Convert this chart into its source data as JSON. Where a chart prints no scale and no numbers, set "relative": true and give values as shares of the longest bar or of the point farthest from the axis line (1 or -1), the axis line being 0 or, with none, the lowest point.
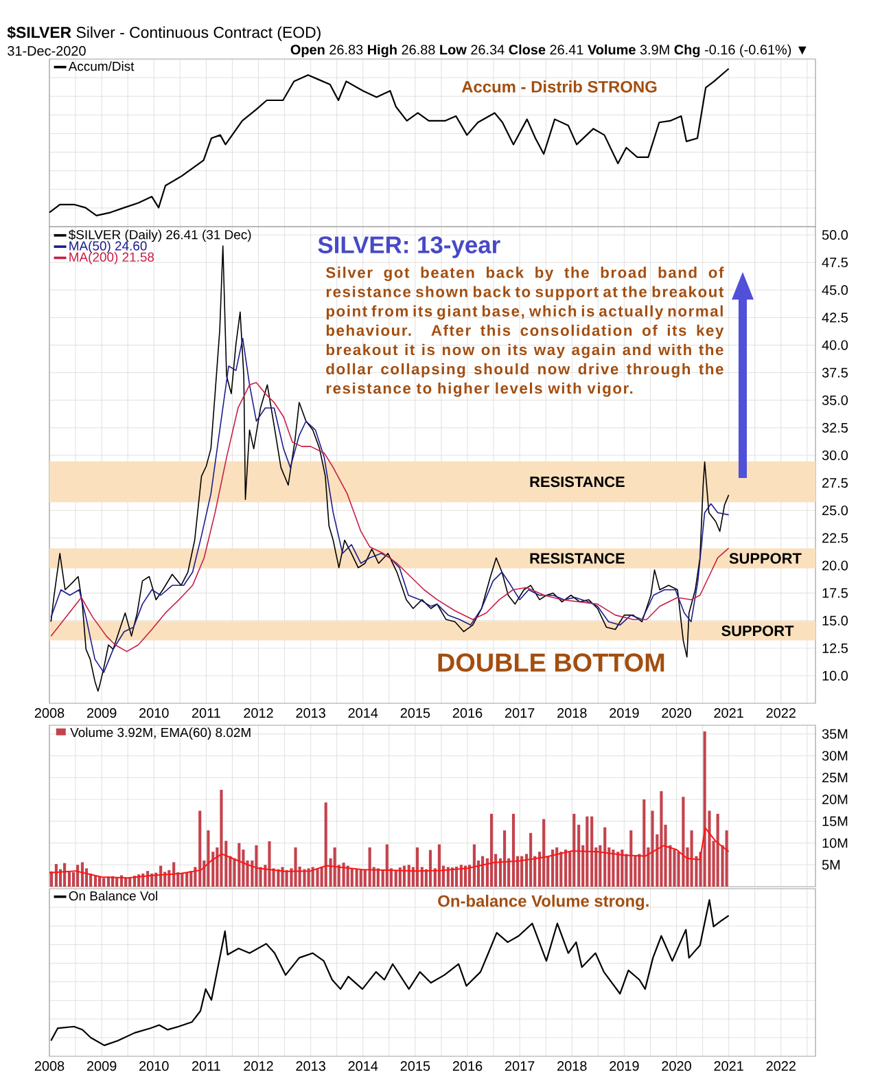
{
  "chart_data": [
    {
      "type": "line",
      "title": "**$SILVER** Silver - Continuous Contract (EOD)",
      "subtitle": "31-Dec-2020",
      "annotations": [
        "**Open** 26.83 **High** 26.88 **Low** 26.34 **Close** 26.41 **Volume** 3.9M **Chg** -0.16 (-0.61%) ▼",
        "Accum - Distrib STRONG"
      ],
      "relative": true,
      "xlim": [
        2008,
        2022.66
      ],
      "xticks": [
        2008,
        {
          "value": 2008.5,
          "label": null
        },
        2009,
        {
          "value": 2009.5,
          "label": null
        },
        2010,
        {
          "value": 2010.5,
          "label": null
        },
        2011,
        {
          "value": 2011.5,
          "label": null
        },
        2012,
        {
          "value": 2012.5,
          "label": null
        },
        2013,
        {
          "value": 2013.5,
          "label": null
        },
        2014,
        {
          "value": 2014.5,
          "label": null
        },
        2015,
        {
          "value": 2015.5,
          "label": null
        },
        2016,
        {
          "value": 2016.5,
          "label": null
        },
        2017,
        {
          "value": 2017.5,
          "label": null
        },
        2018,
        {
          "value": 2018.5,
          "label": null
        },
        2019,
        {
          "value": 2019.5,
          "label": null
        },
        2020,
        {
          "value": 2020.5,
          "label": null
        },
        2021,
        {
          "value": 2021.5,
          "label": null
        },
        2022,
        {
          "value": 2022.5,
          "label": null
        }
      ],
      "tick_labels": false,
      "grid": true,
      "legend": "top left",
      "series": [
        {
          "name": "Accum/Dist",
          "color": "#000000",
          "x": [
            2008.0,
            2008.2,
            2008.47,
            2008.69,
            2008.9,
            2009.17,
            2009.43,
            2009.7,
            2009.96,
            2010.09,
            2010.22,
            2010.53,
            2010.95,
            2011.1,
            2011.27,
            2011.37,
            2011.69,
            2011.95,
            2012.16,
            2012.47,
            2012.68,
            2012.95,
            2013.16,
            2013.37,
            2013.53,
            2013.68,
            2014.0,
            2014.26,
            2014.52,
            2014.63,
            2014.84,
            2015.05,
            2015.26,
            2015.57,
            2015.78,
            2015.99,
            2016.2,
            2016.52,
            2016.67,
            2016.88,
            2017.14,
            2017.3,
            2017.46,
            2017.67,
            2017.93,
            2018.09,
            2018.41,
            2018.62,
            2018.88,
            2019.04,
            2019.25,
            2019.46,
            2019.67,
            2019.88,
            2020.09,
            2020.19,
            2020.4,
            2020.56,
            2020.72,
            2021.0
          ],
          "values": [
            0.09,
            0.14,
            0.14,
            0.12,
            0.07,
            0.09,
            0.12,
            0.15,
            0.19,
            0.12,
            0.26,
            0.32,
            0.42,
            0.56,
            0.58,
            0.52,
            0.67,
            0.74,
            0.8,
            0.8,
            0.92,
            0.96,
            0.93,
            0.9,
            0.8,
            0.92,
            0.86,
            0.82,
            0.86,
            0.76,
            0.67,
            0.72,
            0.67,
            0.67,
            0.7,
            0.58,
            0.66,
            0.72,
            0.66,
            0.52,
            0.68,
            0.56,
            0.46,
            0.68,
            0.64,
            0.52,
            0.62,
            0.58,
            0.4,
            0.5,
            0.44,
            0.44,
            0.66,
            0.67,
            0.7,
            0.54,
            0.56,
            0.88,
            0.92,
            1.0
          ]
        }
      ]
    },
    {
      "type": "line",
      "title": "SILVER: 13-year",
      "annotations": [
        "Silver got beaten back by the broad band of resistance shown back to support at the breakout point from its giant base, which is actually normal behaviour. After this consolidation of its key breakout it is now on its way again and with the dollar collapsing should now drive through the resistance to higher levels with vigor.",
        "SUPPORT",
        "DOUBLE BOTTOM"
      ],
      "xlim": [
        2008,
        2022.66
      ],
      "xticks": [
        2008,
        {
          "value": 2008.5,
          "label": null
        },
        2009,
        {
          "value": 2009.5,
          "label": null
        },
        2010,
        {
          "value": 2010.5,
          "label": null
        },
        2011,
        {
          "value": 2011.5,
          "label": null
        },
        2012,
        {
          "value": 2012.5,
          "label": null
        },
        2013,
        {
          "value": 2013.5,
          "label": null
        },
        2014,
        {
          "value": 2014.5,
          "label": null
        },
        2015,
        {
          "value": 2015.5,
          "label": null
        },
        2016,
        {
          "value": 2016.5,
          "label": null
        },
        2017,
        {
          "value": 2017.5,
          "label": null
        },
        2018,
        {
          "value": 2018.5,
          "label": null
        },
        2019,
        {
          "value": 2019.5,
          "label": null
        },
        2020,
        {
          "value": 2020.5,
          "label": null
        },
        2021,
        {
          "value": 2021.5,
          "label": null
        },
        2022,
        {
          "value": 2022.5,
          "label": null
        }
      ],
      "ylim": [
        7.5,
        50.75
      ],
      "yticks": [
        {
          "value": 10,
          "label": "10.0"
        },
        {
          "value": 12.5,
          "label": "12.5"
        },
        {
          "value": 15,
          "label": "15.0"
        },
        {
          "value": 17.5,
          "label": "17.5"
        },
        {
          "value": 20,
          "label": "20.0"
        },
        {
          "value": 22.5,
          "label": "22.5"
        },
        {
          "value": 25,
          "label": "25.0"
        },
        {
          "value": 27.5,
          "label": "27.5"
        },
        {
          "value": 30,
          "label": "30.0"
        },
        {
          "value": 32.5,
          "label": "32.5"
        },
        {
          "value": 35,
          "label": "35.0"
        },
        {
          "value": 37.5,
          "label": "37.5"
        },
        {
          "value": 40,
          "label": "40.0"
        },
        {
          "value": 42.5,
          "label": "42.5"
        },
        {
          "value": 45,
          "label": "45.0"
        },
        {
          "value": 47.5,
          "label": "47.5"
        },
        {
          "value": 50,
          "label": "50.0"
        }
      ],
      "grid": true,
      "legend": "top left",
      "bands": [
        {
          "axis": "y",
          "from": 25.75,
          "to": 29.45,
          "color": "#fae0bd",
          "label": "RESISTANCE"
        },
        {
          "axis": "y",
          "from": 19.75,
          "to": 21.55,
          "color": "#fae0bd",
          "label": "RESISTANCE"
        },
        {
          "axis": "y",
          "from": 13.2,
          "to": 14.95,
          "color": "#fae0bd",
          "label": "SUPPORT"
        }
      ],
      "series": [
        {
          "name": "$SILVER (Daily) 26.41 (31 Dec)",
          "color": "#000000",
          "x": [
            2008.03,
            2008.09,
            2008.2,
            2008.3,
            2008.43,
            2008.55,
            2008.63,
            2008.7,
            2008.78,
            2008.87,
            2008.93,
            2008.96,
            2009.04,
            2009.13,
            2009.22,
            2009.33,
            2009.45,
            2009.57,
            2009.68,
            2009.78,
            2009.91,
            2010.04,
            2010.17,
            2010.35,
            2010.52,
            2010.65,
            2010.78,
            2010.91,
            2011.0,
            2011.09,
            2011.17,
            2011.26,
            2011.32,
            2011.39,
            2011.48,
            2011.57,
            2011.65,
            2011.72,
            2011.75,
            2011.83,
            2011.91,
            2012.04,
            2012.17,
            2012.3,
            2012.43,
            2012.57,
            2012.7,
            2012.78,
            2012.91,
            2013.04,
            2013.17,
            2013.28,
            2013.35,
            2013.43,
            2013.54,
            2013.65,
            2013.78,
            2013.91,
            2014.04,
            2014.17,
            2014.3,
            2014.48,
            2014.65,
            2014.83,
            2014.96,
            2015.13,
            2015.3,
            2015.42,
            2015.59,
            2015.76,
            2015.93,
            2016.1,
            2016.27,
            2016.44,
            2016.55,
            2016.66,
            2016.78,
            2016.91,
            2017.08,
            2017.21,
            2017.38,
            2017.51,
            2017.64,
            2017.81,
            2017.98,
            2018.15,
            2018.32,
            2018.49,
            2018.66,
            2018.83,
            2019.0,
            2019.17,
            2019.34,
            2019.51,
            2019.58,
            2019.68,
            2019.85,
            2020.02,
            2020.13,
            2020.2,
            2020.24,
            2020.36,
            2020.45,
            2020.51,
            2020.54,
            2020.62,
            2020.75,
            2020.83,
            2020.92,
            2021.0
          ],
          "values": [
            14.9,
            17.3,
            21.1,
            17.8,
            18.4,
            19.0,
            16.5,
            12.4,
            11.5,
            9.5,
            8.6,
            9.1,
            10.7,
            12.8,
            12.4,
            14.0,
            15.7,
            13.6,
            15.7,
            18.6,
            19.0,
            16.9,
            17.8,
            19.2,
            18.2,
            19.4,
            22.3,
            28.1,
            29.0,
            30.6,
            35.6,
            41.4,
            49.0,
            37.2,
            35.6,
            40.1,
            43.0,
            37.2,
            26.0,
            32.3,
            30.6,
            34.3,
            36.4,
            32.7,
            28.9,
            27.3,
            31.4,
            34.8,
            33.1,
            32.3,
            30.6,
            28.1,
            23.6,
            22.3,
            19.8,
            22.3,
            21.1,
            19.8,
            20.2,
            21.5,
            20.2,
            21.1,
            19.4,
            16.9,
            16.1,
            16.9,
            16.1,
            16.5,
            15.1,
            14.9,
            14.0,
            14.6,
            16.1,
            19.0,
            20.7,
            19.4,
            17.3,
            16.5,
            17.8,
            18.2,
            16.9,
            17.3,
            17.5,
            16.7,
            17.3,
            16.7,
            16.9,
            16.1,
            14.4,
            14.2,
            15.5,
            15.5,
            14.9,
            17.3,
            19.6,
            17.8,
            18.2,
            17.8,
            13.2,
            11.7,
            15.7,
            17.8,
            20.7,
            27.3,
            29.4,
            24.8,
            24.0,
            23.1,
            25.5,
            26.41
          ]
        },
        {
          "name": "MA(50) 24.60",
          "color": "#1c1c8c",
          "x": [
            2008.03,
            2008.22,
            2008.39,
            2008.57,
            2008.7,
            2008.87,
            2009.04,
            2009.22,
            2009.43,
            2009.61,
            2009.78,
            2009.96,
            2010.13,
            2010.35,
            2010.57,
            2010.74,
            2010.91,
            2011.09,
            2011.26,
            2011.43,
            2011.57,
            2011.7,
            2011.83,
            2011.96,
            2012.13,
            2012.3,
            2012.48,
            2012.61,
            2012.78,
            2012.91,
            2013.09,
            2013.26,
            2013.43,
            2013.61,
            2013.78,
            2013.96,
            2014.13,
            2014.35,
            2014.52,
            2014.7,
            2014.87,
            2015.09,
            2015.3,
            2015.42,
            2015.63,
            2015.85,
            2016.06,
            2016.27,
            2016.49,
            2016.66,
            2016.83,
            2017.0,
            2017.17,
            2017.38,
            2017.64,
            2017.85,
            2018.06,
            2018.32,
            2018.49,
            2018.7,
            2018.92,
            2019.13,
            2019.34,
            2019.56,
            2019.77,
            2019.98,
            2020.15,
            2020.28,
            2020.41,
            2020.54,
            2020.66,
            2020.79,
            2021.0
          ],
          "values": [
            15.3,
            17.8,
            17.3,
            17.8,
            15.3,
            11.5,
            10.3,
            12.4,
            14.0,
            14.4,
            16.5,
            17.8,
            17.3,
            18.2,
            18.2,
            19.4,
            22.7,
            26.5,
            32.3,
            38.1,
            37.7,
            40.6,
            36.4,
            33.1,
            34.3,
            34.3,
            30.6,
            28.9,
            31.8,
            33.1,
            32.3,
            29.8,
            24.8,
            21.1,
            21.9,
            20.2,
            20.7,
            21.1,
            20.7,
            19.8,
            17.3,
            16.9,
            16.3,
            16.5,
            15.5,
            15.1,
            14.6,
            16.1,
            18.6,
            19.4,
            18.2,
            16.9,
            17.8,
            17.3,
            17.3,
            16.9,
            17.1,
            16.7,
            16.3,
            14.9,
            14.6,
            15.5,
            15.1,
            17.3,
            17.8,
            17.8,
            15.7,
            14.9,
            18.6,
            24.8,
            25.6,
            24.8,
            24.6
          ]
        },
        {
          "name": "MA(200) 21.58",
          "color": "#c81e46",
          "x": [
            2008.03,
            2008.61,
            2008.83,
            2009.09,
            2009.26,
            2009.48,
            2009.7,
            2009.96,
            2010.22,
            2010.48,
            2010.74,
            2010.96,
            2011.17,
            2011.39,
            2011.61,
            2011.83,
            2011.96,
            2012.13,
            2012.3,
            2012.48,
            2012.65,
            2012.83,
            2013.0,
            2013.26,
            2013.43,
            2013.7,
            2013.96,
            2014.13,
            2014.39,
            2014.65,
            2014.91,
            2015.17,
            2015.42,
            2015.76,
            2016.1,
            2016.36,
            2016.61,
            2016.87,
            2017.13,
            2017.47,
            2017.81,
            2018.15,
            2018.49,
            2018.83,
            2019.17,
            2019.43,
            2019.68,
            2020.02,
            2020.28,
            2020.45,
            2020.62,
            2020.79,
            2021.0
          ],
          "values": [
            13.6,
            17.1,
            15.3,
            13.6,
            12.8,
            12.2,
            12.8,
            14.2,
            15.7,
            16.9,
            18.2,
            20.7,
            24.8,
            29.8,
            34.3,
            36.4,
            36.6,
            35.6,
            34.8,
            33.5,
            31.2,
            30.8,
            30.8,
            30.2,
            28.9,
            26.5,
            23.1,
            21.7,
            21.1,
            20.2,
            19.0,
            17.8,
            16.9,
            15.9,
            15.1,
            15.7,
            16.9,
            17.8,
            18.0,
            17.3,
            16.9,
            16.7,
            16.5,
            15.5,
            15.1,
            15.1,
            16.3,
            17.1,
            16.9,
            17.3,
            19.0,
            20.7,
            21.58
          ]
        }
      ]
    },
    {
      "type": "bar",
      "xlim": [
        2008,
        2022.66
      ],
      "xticks": [
        2008,
        {
          "value": 2008.5,
          "label": null
        },
        2009,
        {
          "value": 2009.5,
          "label": null
        },
        2010,
        {
          "value": 2010.5,
          "label": null
        },
        2011,
        {
          "value": 2011.5,
          "label": null
        },
        2012,
        {
          "value": 2012.5,
          "label": null
        },
        2013,
        {
          "value": 2013.5,
          "label": null
        },
        2014,
        {
          "value": 2014.5,
          "label": null
        },
        2015,
        {
          "value": 2015.5,
          "label": null
        },
        2016,
        {
          "value": 2016.5,
          "label": null
        },
        2017,
        {
          "value": 2017.5,
          "label": null
        },
        2018,
        {
          "value": 2018.5,
          "label": null
        },
        2019,
        {
          "value": 2019.5,
          "label": null
        },
        2020,
        {
          "value": 2020.5,
          "label": null
        },
        2021,
        {
          "value": 2021.5,
          "label": null
        },
        2022,
        {
          "value": 2022.5,
          "label": null
        }
      ],
      "ylim": [
        0,
        37
      ],
      "yticks": [
        {
          "value": 5,
          "label": "5M"
        },
        {
          "value": 10,
          "label": "10M"
        },
        {
          "value": 15,
          "label": "15M"
        },
        {
          "value": 20,
          "label": "20M"
        },
        {
          "value": 25,
          "label": "25M"
        },
        {
          "value": 30,
          "label": "30M"
        },
        {
          "value": 35,
          "label": "35M"
        }
      ],
      "tick_labels": "y",
      "grid": true,
      "legend": "top left",
      "series": [
        {
          "name": "Volume 3.92M, EMA(60) 8.02M",
          "color": "#c4424c",
          "x": [
            2008.04,
            2008.13,
            2008.21,
            2008.29,
            2008.38,
            2008.46,
            2008.54,
            2008.63,
            2008.71,
            2008.79,
            2008.88,
            2008.96,
            2009.04,
            2009.13,
            2009.21,
            2009.29,
            2009.38,
            2009.46,
            2009.54,
            2009.63,
            2009.71,
            2009.79,
            2009.88,
            2009.96,
            2010.04,
            2010.13,
            2010.21,
            2010.29,
            2010.38,
            2010.46,
            2010.54,
            2010.63,
            2010.71,
            2010.79,
            2010.88,
            2010.96,
            2011.04,
            2011.13,
            2011.21,
            2011.29,
            2011.38,
            2011.46,
            2011.54,
            2011.63,
            2011.71,
            2011.79,
            2011.88,
            2011.96,
            2012.04,
            2012.13,
            2012.21,
            2012.29,
            2012.38,
            2012.46,
            2012.54,
            2012.63,
            2012.71,
            2012.79,
            2012.88,
            2012.96,
            2013.04,
            2013.13,
            2013.21,
            2013.29,
            2013.38,
            2013.46,
            2013.54,
            2013.63,
            2013.71,
            2013.79,
            2013.88,
            2013.96,
            2014.04,
            2014.13,
            2014.21,
            2014.29,
            2014.38,
            2014.46,
            2014.54,
            2014.63,
            2014.71,
            2014.79,
            2014.88,
            2014.96,
            2015.04,
            2015.13,
            2015.21,
            2015.29,
            2015.38,
            2015.46,
            2015.54,
            2015.63,
            2015.71,
            2015.79,
            2015.88,
            2015.96,
            2016.04,
            2016.13,
            2016.21,
            2016.29,
            2016.38,
            2016.46,
            2016.54,
            2016.63,
            2016.71,
            2016.79,
            2016.88,
            2016.96,
            2017.04,
            2017.13,
            2017.21,
            2017.29,
            2017.38,
            2017.46,
            2017.54,
            2017.63,
            2017.71,
            2017.79,
            2017.88,
            2017.96,
            2018.04,
            2018.13,
            2018.21,
            2018.29,
            2018.38,
            2018.46,
            2018.54,
            2018.63,
            2018.71,
            2018.79,
            2018.88,
            2018.96,
            2019.04,
            2019.13,
            2019.21,
            2019.29,
            2019.38,
            2019.46,
            2019.54,
            2019.63,
            2019.71,
            2019.79,
            2019.88,
            2019.96,
            2020.04,
            2020.13,
            2020.21,
            2020.29,
            2020.38,
            2020.46,
            2020.54,
            2020.63,
            2020.71,
            2020.79,
            2020.88,
            2020.96
          ],
          "values": [
            3.5,
            5.2,
            4.0,
            5.4,
            3.4,
            3.3,
            5.0,
            5.6,
            4.2,
            3.0,
            2.5,
            2.2,
            2.0,
            2.3,
            2.4,
            2.2,
            2.6,
            2.0,
            2.2,
            2.5,
            2.8,
            3.0,
            3.6,
            3.0,
            3.2,
            4.8,
            3.4,
            3.8,
            5.6,
            3.3,
            3.0,
            3.2,
            3.6,
            4.5,
            17.4,
            6.0,
            12.9,
            8.0,
            9.0,
            22.2,
            10.5,
            7.0,
            6.5,
            10.0,
            8.5,
            6.0,
            6.0,
            9.5,
            4.5,
            5.0,
            10.4,
            4.2,
            4.0,
            4.5,
            3.8,
            4.2,
            9.0,
            4.6,
            4.0,
            4.2,
            4.5,
            4.2,
            4.6,
            19.3,
            6.5,
            9.0,
            5.0,
            5.5,
            4.8,
            4.2,
            4.0,
            3.8,
            4.0,
            9.0,
            4.5,
            4.2,
            3.8,
            9.7,
            4.2,
            3.8,
            4.4,
            4.8,
            5.0,
            4.5,
            9.0,
            4.5,
            4.0,
            8.4,
            4.2,
            9.7,
            4.8,
            4.5,
            4.4,
            4.6,
            5.0,
            4.8,
            5.0,
            9.7,
            6.0,
            7.0,
            6.5,
            16.7,
            7.5,
            6.5,
            12.9,
            6.5,
            16.7,
            7.0,
            7.0,
            7.5,
            12.3,
            7.0,
            8.0,
            15.5,
            7.0,
            8.5,
            9.0,
            8.0,
            8.5,
            8.0,
            16.7,
            14.2,
            9.5,
            16.1,
            16.1,
            9.0,
            9.5,
            13.6,
            9.0,
            8.5,
            8.0,
            8.5,
            7.5,
            12.9,
            7.0,
            7.5,
            20.0,
            9.0,
            17.4,
            12.0,
            21.9,
            14.2,
            9.5,
            8.5,
            8.0,
            20.6,
            9.0,
            12.9,
            7.0,
            8.0,
            35.6,
            17.4,
            10.5,
            16.7,
            9.5,
            12.9
          ]
        },
        {
          "type": "line",
          "color": "#ff1414",
          "x": [
            2008.0,
            2008.5,
            2009.0,
            2009.5,
            2010.0,
            2010.5,
            2010.9,
            2011.1,
            2011.3,
            2011.5,
            2011.8,
            2012.0,
            2012.5,
            2013.0,
            2013.3,
            2013.6,
            2014.0,
            2014.5,
            2015.0,
            2015.5,
            2016.0,
            2016.5,
            2017.0,
            2017.5,
            2018.0,
            2018.5,
            2019.0,
            2019.4,
            2019.75,
            2020.0,
            2020.2,
            2020.45,
            2020.55,
            2020.75,
            2021.0
          ],
          "values": [
            3.2,
            3.6,
            2.2,
            2.0,
            2.6,
            3.0,
            3.8,
            6.0,
            7.5,
            6.5,
            5.0,
            4.2,
            3.5,
            3.6,
            4.8,
            4.4,
            3.9,
            3.8,
            3.6,
            3.7,
            4.2,
            5.5,
            5.9,
            6.8,
            8.2,
            8.0,
            7.2,
            7.0,
            9.4,
            8.5,
            6.5,
            6.2,
            13.5,
            10.4,
            8.02
          ]
        }
      ]
    },
    {
      "type": "line",
      "annotations": [
        "On-balance Volume strong."
      ],
      "relative": true,
      "xlim": [
        2008,
        2022.66
      ],
      "xticks": [
        2008,
        {
          "value": 2008.5,
          "label": null
        },
        2009,
        {
          "value": 2009.5,
          "label": null
        },
        2010,
        {
          "value": 2010.5,
          "label": null
        },
        2011,
        {
          "value": 2011.5,
          "label": null
        },
        2012,
        {
          "value": 2012.5,
          "label": null
        },
        2013,
        {
          "value": 2013.5,
          "label": null
        },
        2014,
        {
          "value": 2014.5,
          "label": null
        },
        2015,
        {
          "value": 2015.5,
          "label": null
        },
        2016,
        {
          "value": 2016.5,
          "label": null
        },
        2017,
        {
          "value": 2017.5,
          "label": null
        },
        2018,
        {
          "value": 2018.5,
          "label": null
        },
        2019,
        {
          "value": 2019.5,
          "label": null
        },
        2020,
        {
          "value": 2020.5,
          "label": null
        },
        2021,
        {
          "value": 2021.5,
          "label": null
        },
        2022,
        {
          "value": 2022.5,
          "label": null
        }
      ],
      "tick_labels": "x",
      "grid": true,
      "legend": "top left",
      "series": [
        {
          "name": "On Balance Vol",
          "color": "#000000",
          "x": [
            2008.03,
            2008.16,
            2008.47,
            2008.63,
            2008.79,
            2009.05,
            2009.31,
            2009.63,
            2009.94,
            2010.1,
            2010.26,
            2010.47,
            2010.73,
            2010.89,
            2010.99,
            2011.1,
            2011.26,
            2011.36,
            2011.41,
            2011.62,
            2011.83,
            2012.15,
            2012.31,
            2012.52,
            2012.78,
            2013.04,
            2013.25,
            2013.41,
            2013.57,
            2013.72,
            2013.99,
            2014.25,
            2014.41,
            2014.57,
            2014.88,
            2015.09,
            2015.3,
            2015.56,
            2015.83,
            2015.98,
            2016.25,
            2016.4,
            2016.56,
            2016.77,
            2016.98,
            2017.24,
            2017.51,
            2017.72,
            2017.93,
            2018.08,
            2018.19,
            2018.45,
            2018.61,
            2018.92,
            2019.08,
            2019.29,
            2019.4,
            2019.55,
            2019.71,
            2019.92,
            2020.18,
            2020.24,
            2020.45,
            2020.63,
            2020.71,
            2020.87,
            2021.0
          ],
          "values": [
            0.1,
            0.18,
            0.19,
            0.17,
            0.12,
            0.07,
            0.1,
            0.15,
            0.18,
            0.2,
            0.17,
            0.19,
            0.22,
            0.29,
            0.43,
            0.36,
            0.63,
            0.8,
            0.65,
            0.69,
            0.66,
            0.72,
            0.66,
            0.52,
            0.63,
            0.66,
            0.61,
            0.49,
            0.43,
            0.51,
            0.43,
            0.54,
            0.49,
            0.59,
            0.43,
            0.54,
            0.47,
            0.52,
            0.59,
            0.45,
            0.54,
            0.66,
            0.79,
            0.73,
            0.77,
            0.85,
            0.61,
            0.85,
            0.66,
            0.73,
            0.57,
            0.66,
            0.54,
            0.4,
            0.55,
            0.49,
            0.43,
            0.63,
            0.77,
            0.61,
            0.81,
            0.63,
            0.71,
            1.0,
            0.83,
            0.87,
            0.9
          ]
        }
      ]
    }
  ]
}
